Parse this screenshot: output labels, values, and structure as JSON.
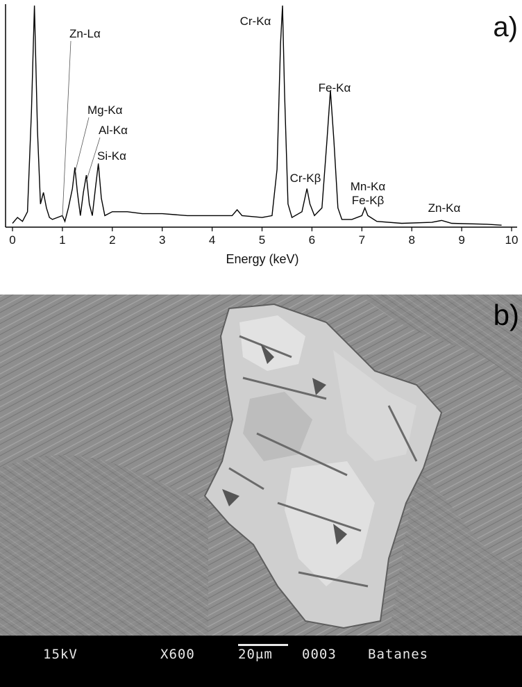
{
  "chart_data": {
    "type": "line",
    "panel_label": "a)",
    "xlabel": "Energy (keV)",
    "ylabel": "",
    "xlim": [
      0,
      10
    ],
    "x_ticks": [
      "0",
      "1",
      "2",
      "3",
      "4",
      "5",
      "6",
      "7",
      "8",
      "9",
      "10"
    ],
    "grid": false,
    "series": [
      {
        "values": [
          [
            0.0,
            0.02
          ],
          [
            0.1,
            0.05
          ],
          [
            0.2,
            0.03
          ],
          [
            0.3,
            0.08
          ],
          [
            0.38,
            0.6
          ],
          [
            0.44,
            1.15
          ],
          [
            0.5,
            0.5
          ],
          [
            0.56,
            0.12
          ],
          [
            0.62,
            0.18
          ],
          [
            0.68,
            0.1
          ],
          [
            0.74,
            0.05
          ],
          [
            0.8,
            0.04
          ],
          [
            0.9,
            0.05
          ],
          [
            1.0,
            0.06
          ],
          [
            1.05,
            0.03
          ],
          [
            1.12,
            0.1
          ],
          [
            1.2,
            0.2
          ],
          [
            1.25,
            0.31
          ],
          [
            1.3,
            0.18
          ],
          [
            1.36,
            0.06
          ],
          [
            1.42,
            0.18
          ],
          [
            1.48,
            0.27
          ],
          [
            1.54,
            0.12
          ],
          [
            1.6,
            0.06
          ],
          [
            1.66,
            0.2
          ],
          [
            1.72,
            0.33
          ],
          [
            1.78,
            0.15
          ],
          [
            1.85,
            0.06
          ],
          [
            2.0,
            0.08
          ],
          [
            2.3,
            0.08
          ],
          [
            2.6,
            0.07
          ],
          [
            3.0,
            0.07
          ],
          [
            3.5,
            0.06
          ],
          [
            4.0,
            0.06
          ],
          [
            4.4,
            0.06
          ],
          [
            4.5,
            0.09
          ],
          [
            4.6,
            0.06
          ],
          [
            5.0,
            0.05
          ],
          [
            5.2,
            0.06
          ],
          [
            5.3,
            0.3
          ],
          [
            5.37,
            0.95
          ],
          [
            5.41,
            1.15
          ],
          [
            5.45,
            0.7
          ],
          [
            5.52,
            0.12
          ],
          [
            5.6,
            0.05
          ],
          [
            5.8,
            0.08
          ],
          [
            5.9,
            0.2
          ],
          [
            5.96,
            0.12
          ],
          [
            6.05,
            0.06
          ],
          [
            6.2,
            0.1
          ],
          [
            6.3,
            0.45
          ],
          [
            6.37,
            0.71
          ],
          [
            6.44,
            0.45
          ],
          [
            6.52,
            0.1
          ],
          [
            6.6,
            0.04
          ],
          [
            6.8,
            0.04
          ],
          [
            7.0,
            0.06
          ],
          [
            7.06,
            0.1
          ],
          [
            7.12,
            0.06
          ],
          [
            7.3,
            0.03
          ],
          [
            7.8,
            0.02
          ],
          [
            8.4,
            0.025
          ],
          [
            8.6,
            0.035
          ],
          [
            8.8,
            0.02
          ],
          [
            9.5,
            0.015
          ],
          [
            9.8,
            0.01
          ]
        ]
      }
    ],
    "annotations": [
      {
        "text": "Zn-Lα",
        "x": 1.0
      },
      {
        "text": "Mg-Kα",
        "x": 1.25
      },
      {
        "text": "Al-Kα",
        "x": 1.48
      },
      {
        "text": "Si-Kα",
        "x": 1.74
      },
      {
        "text": "Cr-Kα",
        "x": 5.41
      },
      {
        "text": "Cr-Kβ",
        "x": 5.95
      },
      {
        "text": "Fe-Kα",
        "x": 6.4
      },
      {
        "text": "Mn-Kα",
        "x": 6.9
      },
      {
        "text": "Fe-Kβ",
        "x": 7.06
      },
      {
        "text": "Zn-Kα",
        "x": 8.63
      }
    ]
  },
  "sem_image": {
    "panel_label": "b)",
    "voltage": "15kV",
    "magnification": "X600",
    "scale": "20μm",
    "frame": "0003",
    "sample": "Batanes"
  }
}
